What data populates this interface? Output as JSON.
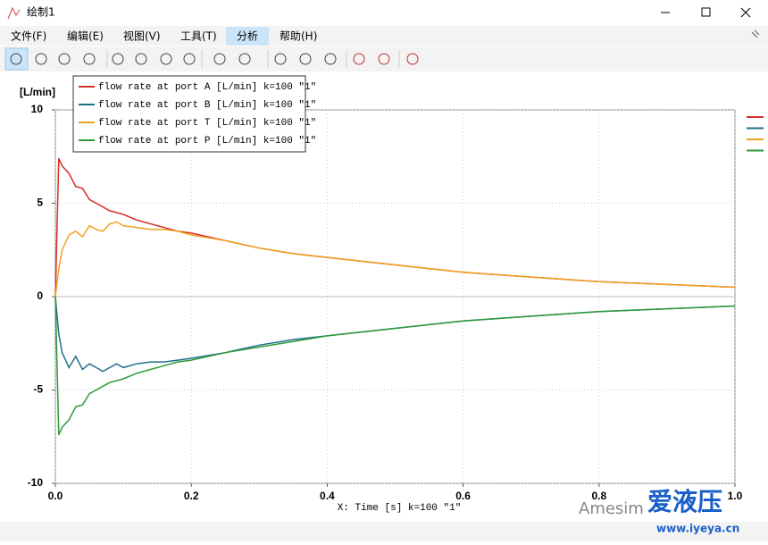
{
  "window": {
    "title": "绘制1"
  },
  "menu": [
    "文件(F)",
    "编辑(E)",
    "视图(V)",
    "工具(T)",
    "分析",
    "帮助(H)"
  ],
  "watermark": {
    "brand": "Amesim",
    "logo": "爱液压",
    "url": "www.iyeya.cn"
  },
  "chart_data": {
    "type": "line",
    "y_label": "[L/min]",
    "x_label": "X: Time [s] k=100  \"1\"",
    "x": [
      0,
      0.005,
      0.01,
      0.02,
      0.03,
      0.04,
      0.05,
      0.06,
      0.07,
      0.08,
      0.09,
      0.1,
      0.12,
      0.14,
      0.16,
      0.18,
      0.2,
      0.25,
      0.3,
      0.35,
      0.4,
      0.5,
      0.6,
      0.7,
      0.8,
      0.9,
      1.0
    ],
    "series": [
      {
        "name": "flow rate at port A [L/min] k=100  \"1\"",
        "color": "#d62f27",
        "values": [
          0,
          7.4,
          7.0,
          6.6,
          5.9,
          5.8,
          5.2,
          5.0,
          4.8,
          4.6,
          4.5,
          4.4,
          4.1,
          3.9,
          3.7,
          3.5,
          3.4,
          3.0,
          2.6,
          2.3,
          2.1,
          1.7,
          1.3,
          1.05,
          0.8,
          0.65,
          0.5
        ]
      },
      {
        "name": "flow rate at port B [L/min] k=100  \"1\"",
        "color": "#1f6f8b",
        "values": [
          0,
          -2.0,
          -3.0,
          -3.8,
          -3.2,
          -3.9,
          -3.6,
          -3.8,
          -4.0,
          -3.8,
          -3.6,
          -3.8,
          -3.6,
          -3.5,
          -3.5,
          -3.4,
          -3.3,
          -3.0,
          -2.6,
          -2.3,
          -2.1,
          -1.7,
          -1.3,
          -1.05,
          -0.8,
          -0.65,
          -0.5
        ]
      },
      {
        "name": "flow rate at port T [L/min] k=100  \"1\"",
        "color": "#f0a020",
        "values": [
          0,
          1.5,
          2.5,
          3.3,
          3.5,
          3.2,
          3.8,
          3.6,
          3.5,
          3.9,
          4.0,
          3.8,
          3.7,
          3.6,
          3.6,
          3.5,
          3.3,
          3.0,
          2.6,
          2.3,
          2.1,
          1.7,
          1.3,
          1.05,
          0.8,
          0.65,
          0.5
        ]
      },
      {
        "name": "flow rate at port P [L/min] k=100  \"1\"",
        "color": "#2e9a3a",
        "values": [
          0,
          -7.4,
          -7.0,
          -6.6,
          -5.9,
          -5.8,
          -5.2,
          -5.0,
          -4.8,
          -4.6,
          -4.5,
          -4.4,
          -4.1,
          -3.9,
          -3.7,
          -3.5,
          -3.4,
          -3.0,
          -2.7,
          -2.4,
          -2.1,
          -1.7,
          -1.3,
          -1.05,
          -0.8,
          -0.65,
          -0.5
        ]
      }
    ],
    "xlim": [
      0,
      1.0
    ],
    "ylim": [
      -10,
      10
    ],
    "xticks": [
      {
        "value": 0,
        "label": "0.0"
      },
      0.2,
      0.4,
      0.6,
      0.8,
      {
        "value": 1.0,
        "label": "1.0"
      }
    ],
    "yticks": [
      -10,
      -5,
      0,
      5,
      10
    ],
    "grid": true,
    "legend": "top-left"
  }
}
